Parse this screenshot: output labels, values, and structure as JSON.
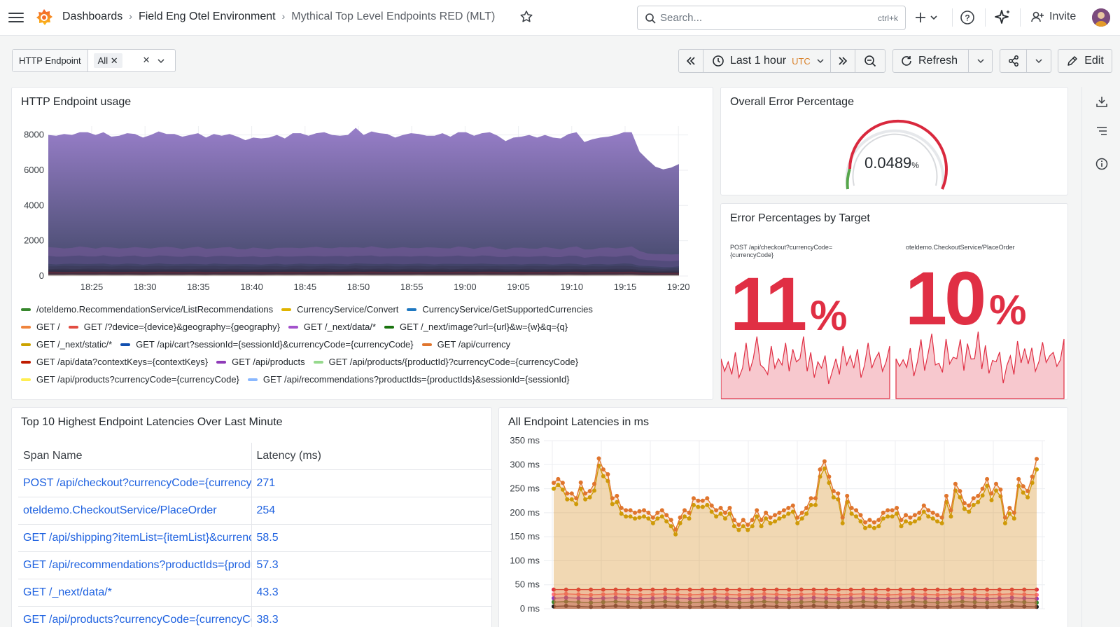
{
  "breadcrumbs": [
    "Dashboards",
    "Field Eng Otel Environment",
    "Mythical Top Level Endpoints RED (MLT)"
  ],
  "search": {
    "placeholder": "Search...",
    "shortcut": "ctrl+k"
  },
  "invite_label": "Invite",
  "variable": {
    "label": "HTTP Endpoint",
    "value": "All"
  },
  "time_picker": {
    "label": "Last 1 hour",
    "timezone": "UTC"
  },
  "refresh_label": "Refresh",
  "edit_label": "Edit",
  "colors": {
    "accent": "#1f62e0",
    "error_red": "#e02f44",
    "gauge_red": "#d9283d",
    "gauge_green": "#56a64b"
  },
  "panels": {
    "usage": {
      "title": "HTTP Endpoint usage"
    },
    "overall_error": {
      "title": "Overall Error Percentage",
      "value": "0.0489",
      "unit": "%"
    },
    "error_by_target": {
      "title": "Error Percentages by Target",
      "targets": [
        {
          "label": "POST /api/checkout?currencyCode={currencyCode}",
          "value": "11",
          "unit": "%"
        },
        {
          "label": "oteldemo.CheckoutService/PlaceOrder",
          "value": "10",
          "unit": "%"
        }
      ]
    },
    "top10": {
      "title": "Top 10 Highest Endpoint Latencies Over Last Minute",
      "columns": [
        "Span Name",
        "Latency (ms)"
      ],
      "rows": [
        {
          "name": "POST /api/checkout?currencyCode={currencyCode}",
          "latency": "271"
        },
        {
          "name": "oteldemo.CheckoutService/PlaceOrder",
          "latency": "254"
        },
        {
          "name": "GET /api/shipping?itemList={itemList}&currencyCode={currencyCode}",
          "latency": "58.5"
        },
        {
          "name": "GET /api/recommendations?productIds={productIds}&sessionId={sessionId}",
          "latency": "57.3"
        },
        {
          "name": "GET /_next/data/*",
          "latency": "43.3"
        },
        {
          "name": "GET /api/products?currencyCode={currencyCode}",
          "latency": "38.3"
        }
      ]
    },
    "all_latencies": {
      "title": "All Endpoint Latencies in ms"
    }
  },
  "chart_data": [
    {
      "type": "area",
      "title": "HTTP Endpoint usage",
      "stacked": true,
      "x": [
        "18:25",
        "18:30",
        "18:35",
        "18:40",
        "18:45",
        "18:50",
        "18:55",
        "19:00",
        "19:05",
        "19:10",
        "19:15",
        "19:20"
      ],
      "yticks": [
        0,
        2000,
        4000,
        6000,
        8000
      ],
      "ylim": [
        0,
        8500
      ],
      "total": [
        8000,
        7950,
        8050,
        8000,
        8150,
        8150,
        8000,
        8150,
        7900,
        7950,
        8100,
        8050,
        7850,
        8000,
        8200,
        8050,
        8050,
        7900,
        8000,
        8100,
        7850,
        8050,
        7950,
        8050,
        7900,
        7700,
        7850,
        7800,
        7850,
        8000,
        7800,
        8100,
        8100,
        7950,
        8100,
        8150,
        8000,
        7950,
        8000,
        8400,
        8000,
        8200,
        8100,
        8050,
        7850,
        8000,
        8100,
        8050,
        7950,
        7950,
        8100,
        7900,
        8150,
        8150,
        7950,
        8100,
        8150,
        7950,
        7650,
        7850,
        7900,
        8000,
        7850,
        8000,
        7850,
        7800,
        8050,
        8150,
        7600,
        7750,
        7850,
        7900,
        8000,
        8150,
        8150,
        7050,
        6600,
        6200,
        6050,
        6150,
        6350
      ],
      "legend": [
        {
          "name": "/oteldemo.RecommendationService/ListRecommendations",
          "color": "#37872d"
        },
        {
          "name": "CurrencyService/Convert",
          "color": "#e0b400"
        },
        {
          "name": "CurrencyService/GetSupportedCurrencies",
          "color": "#1f78c1"
        },
        {
          "name": "GET /",
          "color": "#ef843c"
        },
        {
          "name": "GET /?device={device}&geography={geography}",
          "color": "#e24d42"
        },
        {
          "name": "GET /_next/data/*",
          "color": "#a352cc"
        },
        {
          "name": "GET /_next/image?url={url}&w={w}&q={q}",
          "color": "#19730e"
        },
        {
          "name": "GET /_next/static/*",
          "color": "#cca300"
        },
        {
          "name": "GET /api/cart?sessionId={sessionId}&currencyCode={currencyCode}",
          "color": "#1250b0"
        },
        {
          "name": "GET /api/currency",
          "color": "#e0752d"
        },
        {
          "name": "GET /api/data?contextKeys={contextKeys}",
          "color": "#bf1b00"
        },
        {
          "name": "GET /api/products",
          "color": "#8f3bb8"
        },
        {
          "name": "GET /api/products/{productId}?currencyCode={currencyCode}",
          "color": "#96d98d"
        },
        {
          "name": "GET /api/products?currencyCode={currencyCode}",
          "color": "#ffee52"
        },
        {
          "name": "GET /api/recommendations?productIds={productIds}&sessionId={sessionId}",
          "color": "#8ab8ff"
        }
      ]
    },
    {
      "type": "line",
      "title": "All Endpoint Latencies in ms",
      "yticks": [
        0,
        50,
        100,
        150,
        200,
        250,
        300,
        350
      ],
      "ylim": [
        0,
        350
      ],
      "series": [
        {
          "color": "#e0752d",
          "values": [
            262,
            270,
            262,
            240,
            240,
            230,
            263,
            240,
            245,
            260,
            313,
            290,
            280,
            230,
            235,
            210,
            205,
            205,
            200,
            203,
            205,
            200,
            190,
            200,
            205,
            195,
            185,
            165,
            190,
            205,
            200,
            230,
            225,
            225,
            230,
            215,
            205,
            210,
            200,
            210,
            185,
            175,
            185,
            175,
            185,
            205,
            185,
            200,
            190,
            195,
            200,
            205,
            210,
            215,
            190,
            200,
            210,
            230,
            230,
            290,
            307,
            275,
            245,
            240,
            190,
            235,
            210,
            205,
            195,
            180,
            185,
            180,
            185,
            200,
            205,
            205,
            210,
            185,
            195,
            190,
            195,
            200,
            215,
            205,
            200,
            195,
            190,
            235,
            205,
            260,
            245,
            220,
            215,
            230,
            235,
            250,
            270,
            240,
            260,
            248,
            190,
            210,
            200,
            270,
            255,
            245,
            275,
            312
          ]
        },
        {
          "color": "#cca300",
          "values": [
            250,
            258,
            248,
            228,
            228,
            218,
            250,
            228,
            232,
            246,
            298,
            276,
            266,
            218,
            222,
            198,
            192,
            192,
            188,
            190,
            192,
            188,
            178,
            188,
            192,
            182,
            172,
            155,
            178,
            192,
            188,
            216,
            212,
            212,
            216,
            202,
            192,
            198,
            188,
            198,
            172,
            164,
            172,
            164,
            172,
            192,
            172,
            188,
            178,
            182,
            188,
            192,
            198,
            202,
            178,
            188,
            198,
            216,
            216,
            275,
            292,
            262,
            232,
            228,
            178,
            222,
            198,
            192,
            182,
            168,
            172,
            168,
            172,
            188,
            192,
            192,
            198,
            172,
            182,
            178,
            182,
            188,
            202,
            192,
            188,
            182,
            178,
            222,
            192,
            246,
            232,
            208,
            202,
            216,
            222,
            236,
            256,
            226,
            246,
            234,
            178,
            198,
            188,
            256,
            242,
            232,
            262,
            290
          ]
        },
        {
          "color": "#e02f44",
          "values": [
            40,
            40,
            40,
            40,
            40,
            40,
            40,
            40,
            40,
            40,
            40,
            40,
            40,
            40,
            40,
            40,
            40,
            40,
            40,
            40,
            40,
            40,
            40,
            40,
            40,
            40,
            40,
            40,
            40,
            40,
            40,
            40,
            40,
            40,
            40,
            40,
            40,
            40,
            40,
            40
          ]
        },
        {
          "color": "#ff7383",
          "values": [
            30,
            31,
            30,
            29,
            30,
            31,
            30,
            29,
            30,
            31,
            30,
            29,
            30,
            31,
            30,
            29,
            30,
            31,
            30,
            29,
            30,
            31,
            30,
            29,
            30,
            31,
            30,
            29,
            30,
            31,
            30,
            29,
            30,
            31,
            30,
            29,
            30,
            31,
            30,
            29
          ]
        },
        {
          "color": "#8f3bb8",
          "values": [
            22,
            23,
            22,
            21,
            22,
            23,
            22,
            21,
            22,
            23,
            22,
            21,
            22,
            23,
            22,
            21,
            22,
            23,
            22,
            21,
            22,
            23,
            22,
            21,
            22,
            23,
            22,
            21,
            22,
            23,
            22,
            21,
            22,
            23,
            22,
            21,
            22,
            23,
            22,
            21
          ]
        },
        {
          "color": "#37872d",
          "values": [
            14,
            15,
            14,
            13,
            14,
            15,
            14,
            13,
            14,
            15,
            14,
            13,
            14,
            15,
            14,
            13,
            14,
            15,
            14,
            13,
            14,
            15,
            14,
            13,
            14,
            15,
            14,
            13,
            14,
            15,
            14,
            13,
            14,
            15,
            14,
            13,
            14,
            15,
            14,
            13
          ]
        },
        {
          "color": "#1f1f1f",
          "values": [
            5,
            6,
            5,
            4,
            5,
            6,
            5,
            4,
            5,
            6,
            5,
            4,
            5,
            6,
            5,
            4,
            5,
            6,
            5,
            4,
            5,
            6,
            5,
            4,
            5,
            6,
            5,
            4,
            5,
            6,
            5,
            4,
            5,
            6,
            5,
            4,
            5,
            6,
            5,
            4
          ]
        }
      ]
    }
  ]
}
